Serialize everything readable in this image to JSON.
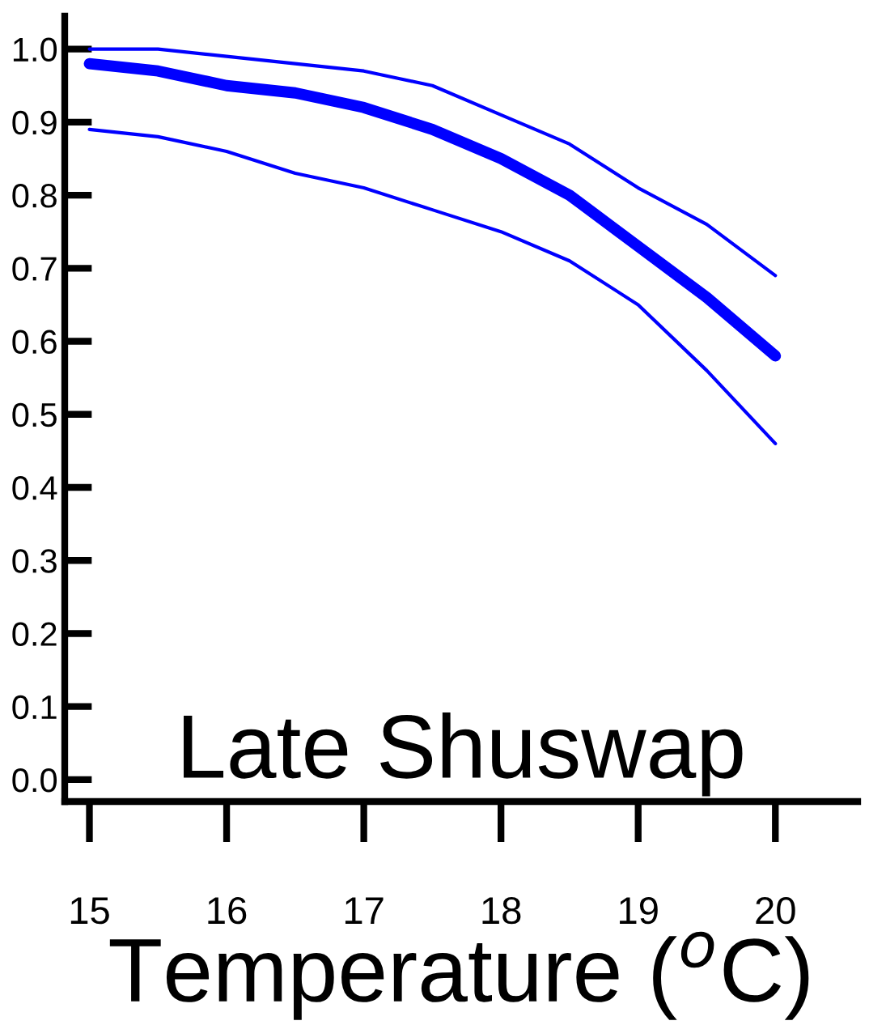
{
  "chart_data": {
    "type": "line",
    "xlabel": "Temperature ($^{o}$C)",
    "annotations": [
      "Late Shuswap"
    ],
    "x": [
      15,
      15.5,
      16,
      16.5,
      17,
      17.5,
      18,
      18.5,
      19,
      19.5,
      20
    ],
    "series": [
      {
        "color": "#0000ff",
        "values": [
          0.98,
          0.97,
          0.95,
          0.94,
          0.92,
          0.89,
          0.85,
          0.8,
          0.73,
          0.66,
          0.58
        ]
      },
      {
        "color": "#0000ff",
        "values": [
          0.89,
          0.88,
          0.86,
          0.83,
          0.81,
          0.78,
          0.75,
          0.71,
          0.65,
          0.56,
          0.46
        ]
      },
      {
        "color": "#0000ff",
        "values": [
          1.0,
          1.0,
          0.99,
          0.98,
          0.97,
          0.95,
          0.91,
          0.87,
          0.81,
          0.76,
          0.69
        ]
      }
    ],
    "xlim": [
      14.82,
      20.6
    ],
    "ylim": [
      -0.03,
      1.045
    ],
    "xticks": [
      15,
      16,
      17,
      18,
      19,
      20
    ],
    "yticks": [
      {
        "value": 0,
        "label": "0.0"
      },
      0.1,
      0.2,
      0.3,
      0.4,
      0.5,
      0.6,
      0.7,
      0.8,
      0.9,
      {
        "value": 1,
        "label": "1.0"
      }
    ],
    "grid": false,
    "legend": false,
    "marker": "none",
    "line_style": "solid"
  }
}
